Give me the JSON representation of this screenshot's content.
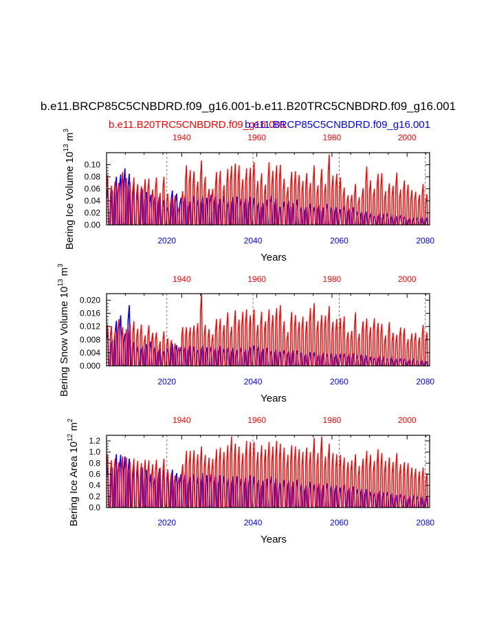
{
  "title": "b.e11.BRCP85C5CNBDRD.f09_g16.001-b.e11.B20TRC5CNBDRD.f09_g16.001",
  "legend": {
    "red_label": "b.e11.B20TRC5CNBDRD.f09_g16.001",
    "blue_label": "b.e11.BRCP85C5CNBDRD.f09_g16.001"
  },
  "colors": {
    "historical": "#ff0000",
    "future": "#0000ff",
    "grid": "#555555"
  },
  "chart_data": [
    {
      "type": "line",
      "name": "ice-volume",
      "ylabel": "Bering Ice Volume 10",
      "ylabel_exp": "13",
      "ylabel_unit": " m",
      "ylabel_unit_exp": "3",
      "xlabel": "Years",
      "ylim": [
        0,
        0.12
      ],
      "yticks": [
        "0.00",
        "0.02",
        "0.04",
        "0.06",
        "0.08",
        "0.10"
      ],
      "bottom_axis": {
        "range": [
          2006,
          2081
        ],
        "ticks": [
          "2020",
          "2040",
          "2060",
          "2080"
        ]
      },
      "top_axis": {
        "range": [
          1920,
          2006
        ],
        "ticks": [
          "1940",
          "1960",
          "1980",
          "2000"
        ]
      },
      "series": [
        {
          "name": "b.e11.B20TRC5CNBDRD.f09_g16.001",
          "color": "#ff0000",
          "annual_max": [
            0.083,
            0.065,
            0.072,
            0.07,
            0.088,
            0.078,
            0.071,
            0.079,
            0.068,
            0.064,
            0.076,
            0.077,
            0.059,
            0.079,
            0.053,
            0.08,
            0.052,
            0.046,
            0.049,
            0.029,
            0.056,
            0.099,
            0.091,
            0.089,
            0.072,
            0.107,
            0.08,
            0.06,
            0.06,
            0.088,
            0.09,
            0.066,
            0.093,
            0.098,
            0.102,
            0.099,
            0.076,
            0.094,
            0.095,
            0.104,
            0.073,
            0.086,
            0.067,
            0.104,
            0.09,
            0.099,
            0.1,
            0.077,
            0.063,
            0.088,
            0.089,
            0.083,
            0.073,
            0.086,
            0.07,
            0.099,
            0.066,
            0.093,
            0.068,
            0.117,
            0.082,
            0.085,
            0.079,
            0.062,
            0.049,
            0.05,
            0.068,
            0.046,
            0.061,
            0.097,
            0.074,
            0.06,
            0.085,
            0.086,
            0.056,
            0.069,
            0.065,
            0.087,
            0.059,
            0.074,
            0.067,
            0.058,
            0.055,
            0.05,
            0.068,
            0.051
          ]
        },
        {
          "name": "b.e11.BRCP85C5CNBDRD.f09_g16.001",
          "color": "#0000ff",
          "annual_max": [
            0.06,
            0.058,
            0.08,
            0.084,
            0.094,
            0.085,
            0.068,
            0.055,
            0.06,
            0.055,
            0.05,
            0.048,
            0.047,
            0.041,
            0.03,
            0.057,
            0.052,
            0.045,
            0.049,
            0.039,
            0.048,
            0.043,
            0.047,
            0.045,
            0.05,
            0.049,
            0.043,
            0.048,
            0.039,
            0.046,
            0.047,
            0.043,
            0.044,
            0.047,
            0.045,
            0.037,
            0.036,
            0.042,
            0.048,
            0.043,
            0.03,
            0.039,
            0.04,
            0.036,
            0.042,
            0.03,
            0.03,
            0.035,
            0.03,
            0.033,
            0.029,
            0.035,
            0.03,
            0.03,
            0.026,
            0.032,
            0.027,
            0.029,
            0.022,
            0.022,
            0.022,
            0.017,
            0.015,
            0.018,
            0.016,
            0.019,
            0.015,
            0.013,
            0.015,
            0.014,
            0.01,
            0.011,
            0.012,
            0.012,
            0.011
          ]
        }
      ]
    },
    {
      "type": "line",
      "name": "snow-volume",
      "ylabel": "Bering Snow Volume 10",
      "ylabel_exp": "13",
      "ylabel_unit": " m",
      "ylabel_unit_exp": "3",
      "xlabel": "Years",
      "ylim": [
        0,
        0.022
      ],
      "yticks": [
        "0.000",
        "0.004",
        "0.008",
        "0.012",
        "0.016",
        "0.020"
      ],
      "bottom_axis": {
        "range": [
          2006,
          2081
        ],
        "ticks": [
          "2020",
          "2040",
          "2060",
          "2080"
        ]
      },
      "top_axis": {
        "range": [
          1920,
          2006
        ],
        "ticks": [
          "1940",
          "1960",
          "1980",
          "2000"
        ]
      },
      "series": [
        {
          "name": "b.e11.B20TRC5CNBDRD.f09_g16.001",
          "color": "#ff0000",
          "annual_max": [
            0.0125,
            0.0122,
            0.0104,
            0.0142,
            0.0118,
            0.0112,
            0.0129,
            0.0136,
            0.0113,
            0.0126,
            0.0093,
            0.0124,
            0.0101,
            0.0102,
            0.0075,
            0.0105,
            0.0084,
            0.0079,
            0.0068,
            0.0058,
            0.0118,
            0.0118,
            0.0117,
            0.0123,
            0.013,
            0.0222,
            0.0125,
            0.0112,
            0.0096,
            0.0143,
            0.0144,
            0.0124,
            0.0163,
            0.0119,
            0.0169,
            0.0141,
            0.0165,
            0.0172,
            0.0154,
            0.0172,
            0.0125,
            0.0165,
            0.0136,
            0.0172,
            0.0155,
            0.0176,
            0.0185,
            0.0136,
            0.0103,
            0.0164,
            0.0155,
            0.0134,
            0.015,
            0.0136,
            0.0176,
            0.0191,
            0.0137,
            0.0155,
            0.0153,
            0.0182,
            0.0135,
            0.0143,
            0.0146,
            0.0151,
            0.0103,
            0.0107,
            0.0163,
            0.0098,
            0.0136,
            0.0144,
            0.0118,
            0.0145,
            0.0131,
            0.0128,
            0.0093,
            0.0133,
            0.0101,
            0.0095,
            0.0117,
            0.0114,
            0.0082,
            0.0099,
            0.0101,
            0.0087,
            0.0125,
            0.0102
          ]
        },
        {
          "name": "b.e11.BRCP85C5CNBDRD.f09_g16.001",
          "color": "#0000ff",
          "annual_max": [
            0.011,
            0.008,
            0.0137,
            0.0154,
            0.0098,
            0.0185,
            0.0072,
            0.0058,
            0.006,
            0.0066,
            0.0074,
            0.0058,
            0.0052,
            0.0044,
            0.0055,
            0.0068,
            0.0063,
            0.0057,
            0.0059,
            0.0062,
            0.0058,
            0.0051,
            0.0064,
            0.0056,
            0.0058,
            0.0055,
            0.006,
            0.0052,
            0.0057,
            0.0054,
            0.0047,
            0.0056,
            0.0049,
            0.0057,
            0.0063,
            0.006,
            0.0052,
            0.0055,
            0.0046,
            0.0049,
            0.0043,
            0.0048,
            0.0044,
            0.0046,
            0.0047,
            0.0042,
            0.0036,
            0.0041,
            0.0041,
            0.0034,
            0.0039,
            0.0036,
            0.0039,
            0.0032,
            0.0034,
            0.0038,
            0.0034,
            0.0034,
            0.003,
            0.0036,
            0.0029,
            0.0025,
            0.0024,
            0.0028,
            0.0024,
            0.0021,
            0.0026,
            0.0019,
            0.0021,
            0.0022,
            0.0017,
            0.002,
            0.0015,
            0.0016,
            0.0012
          ]
        }
      ]
    },
    {
      "type": "line",
      "name": "ice-area",
      "ylabel": "Bering Ice Area 10",
      "ylabel_exp": "12",
      "ylabel_unit": " m",
      "ylabel_unit_exp": "2",
      "xlabel": "Years",
      "ylim": [
        0,
        1.3
      ],
      "yticks": [
        "0.0",
        "0.2",
        "0.4",
        "0.6",
        "0.8",
        "1.0",
        "1.2"
      ],
      "bottom_axis": {
        "range": [
          2006,
          2081
        ],
        "ticks": [
          "2020",
          "2040",
          "2060",
          "2080"
        ]
      },
      "top_axis": {
        "range": [
          1920,
          2006
        ],
        "ticks": [
          "1940",
          "1960",
          "1980",
          "2000"
        ]
      },
      "series": [
        {
          "name": "b.e11.B20TRC5CNBDRD.f09_g16.001",
          "color": "#ff0000",
          "annual_max": [
            0.95,
            0.85,
            0.88,
            0.82,
            0.92,
            0.9,
            0.82,
            0.88,
            0.84,
            0.8,
            0.86,
            0.85,
            0.78,
            0.86,
            0.72,
            0.88,
            0.68,
            0.62,
            0.58,
            0.55,
            0.78,
            1.02,
            1.02,
            1.03,
            0.96,
            1.1,
            0.95,
            0.9,
            0.88,
            1.05,
            1.08,
            1.0,
            1.12,
            1.28,
            1.15,
            1.1,
            0.98,
            1.2,
            1.18,
            1.18,
            1.0,
            1.12,
            1.05,
            1.18,
            1.1,
            1.2,
            1.15,
            1.08,
            0.95,
            1.12,
            1.1,
            1.05,
            1.0,
            1.08,
            1.0,
            1.25,
            0.98,
            1.28,
            0.92,
            1.15,
            0.98,
            0.96,
            0.95,
            0.9,
            0.82,
            0.85,
            0.96,
            0.75,
            0.88,
            1.02,
            0.95,
            0.84,
            1.05,
            0.98,
            0.84,
            0.9,
            0.82,
            0.98,
            0.78,
            0.82,
            0.8,
            0.72,
            0.7,
            0.65,
            0.72,
            0.62
          ]
        },
        {
          "name": "b.e11.BRCP85C5CNBDRD.f09_g16.001",
          "color": "#0000ff",
          "annual_max": [
            0.75,
            0.72,
            0.96,
            0.95,
            0.92,
            0.88,
            0.78,
            0.7,
            0.72,
            0.68,
            0.6,
            0.55,
            0.7,
            0.68,
            0.62,
            0.68,
            0.62,
            0.6,
            0.62,
            0.55,
            0.6,
            0.56,
            0.62,
            0.58,
            0.6,
            0.58,
            0.58,
            0.57,
            0.52,
            0.56,
            0.56,
            0.52,
            0.54,
            0.58,
            0.56,
            0.5,
            0.48,
            0.52,
            0.56,
            0.52,
            0.44,
            0.5,
            0.48,
            0.46,
            0.5,
            0.42,
            0.4,
            0.46,
            0.42,
            0.44,
            0.4,
            0.44,
            0.4,
            0.4,
            0.36,
            0.42,
            0.36,
            0.38,
            0.33,
            0.34,
            0.33,
            0.28,
            0.26,
            0.3,
            0.27,
            0.28,
            0.26,
            0.22,
            0.24,
            0.22,
            0.18,
            0.2,
            0.2,
            0.2,
            0.18
          ]
        }
      ]
    }
  ]
}
